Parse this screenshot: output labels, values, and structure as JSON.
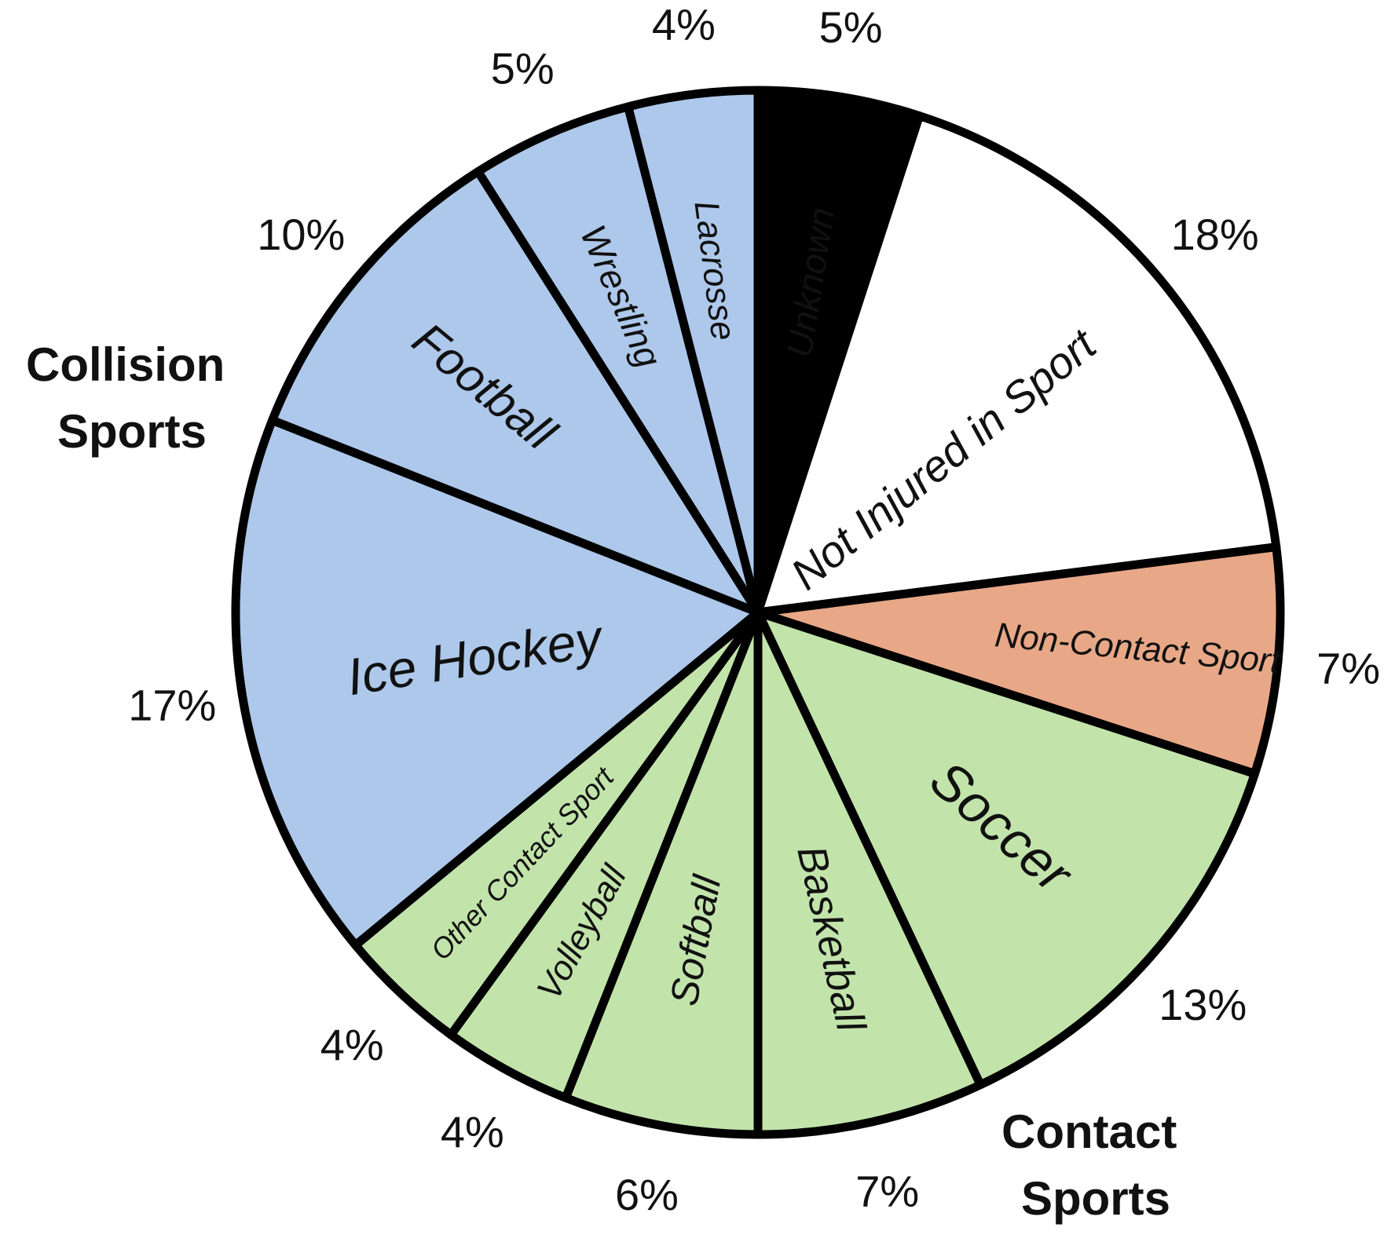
{
  "chart_data": {
    "type": "pie",
    "start_angle": 0,
    "direction": "clockwise",
    "slices": [
      {
        "label": "Unknown",
        "value": 5,
        "percent_label": "5%",
        "color": "#000000",
        "label_color": "#ffffff"
      },
      {
        "label": "Not Injured in Sport",
        "value": 18,
        "percent_label": "18%",
        "color": "#ffffff",
        "label_color": "#111111"
      },
      {
        "label": "Non-Contact Sport",
        "value": 7,
        "percent_label": "7%",
        "color": "#e8a888",
        "label_color": "#111111"
      },
      {
        "label": "Soccer",
        "value": 13,
        "percent_label": "13%",
        "color": "#c2e4ab",
        "label_color": "#111111"
      },
      {
        "label": "Basketball",
        "value": 7,
        "percent_label": "7%",
        "color": "#c2e4ab",
        "label_color": "#111111"
      },
      {
        "label": "Softball",
        "value": 6,
        "percent_label": "6%",
        "color": "#c2e4ab",
        "label_color": "#111111"
      },
      {
        "label": "Volleyball",
        "value": 4,
        "percent_label": "4%",
        "color": "#c2e4ab",
        "label_color": "#111111"
      },
      {
        "label": "Other Contact Sport",
        "value": 4,
        "percent_label": "4%",
        "color": "#c2e4ab",
        "label_color": "#111111"
      },
      {
        "label": "Ice Hockey",
        "value": 17,
        "percent_label": "17%",
        "color": "#adc8ea",
        "label_color": "#111111"
      },
      {
        "label": "Football",
        "value": 10,
        "percent_label": "10%",
        "color": "#adc8ea",
        "label_color": "#111111"
      },
      {
        "label": "Wrestling",
        "value": 5,
        "percent_label": "5%",
        "color": "#adc8ea",
        "label_color": "#111111"
      },
      {
        "label": "Lacrosse",
        "value": 4,
        "percent_label": "4%",
        "color": "#adc8ea",
        "label_color": "#111111"
      }
    ],
    "groups": [
      {
        "name": "Collision Sports",
        "lines": [
          "Collision",
          "Sports"
        ],
        "color": "#adc8ea"
      },
      {
        "name": "Contact Sports",
        "lines": [
          "Contact",
          "Sports"
        ],
        "color": "#c2e4ab"
      }
    ]
  }
}
